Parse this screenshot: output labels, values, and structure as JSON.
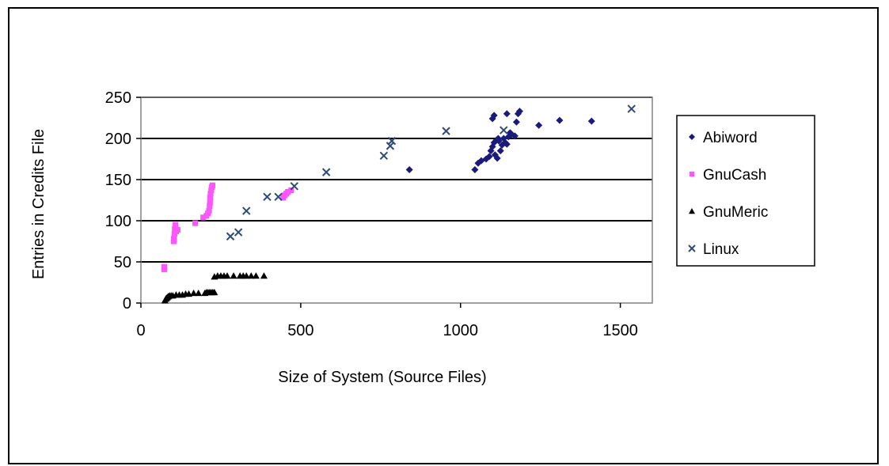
{
  "chart_data": {
    "type": "scatter",
    "xlabel": "Size of System (Source Files)",
    "ylabel": "Entries in Credits File",
    "xlim": [
      0,
      1600
    ],
    "ylim": [
      0,
      250
    ],
    "x_ticks": [
      0,
      500,
      1000,
      1500
    ],
    "y_ticks": [
      0,
      50,
      100,
      150,
      200,
      250
    ],
    "grid": "horizontal",
    "legend_position": "right",
    "colors": {
      "plot_background": "#ffffff",
      "gridline": "#000000"
    },
    "series": [
      {
        "name": "Abiword",
        "marker": "diamond",
        "color": "#1a1a7a",
        "points": [
          [
            840,
            162
          ],
          [
            1045,
            162
          ],
          [
            1055,
            170
          ],
          [
            1065,
            173
          ],
          [
            1080,
            175
          ],
          [
            1090,
            178
          ],
          [
            1095,
            185
          ],
          [
            1100,
            190
          ],
          [
            1105,
            195
          ],
          [
            1108,
            180
          ],
          [
            1112,
            198
          ],
          [
            1115,
            176
          ],
          [
            1118,
            200
          ],
          [
            1120,
            197
          ],
          [
            1125,
            185
          ],
          [
            1130,
            192
          ],
          [
            1135,
            200
          ],
          [
            1140,
            195
          ],
          [
            1145,
            193
          ],
          [
            1150,
            202
          ],
          [
            1155,
            207
          ],
          [
            1160,
            205
          ],
          [
            1170,
            203
          ],
          [
            1175,
            220
          ],
          [
            1100,
            224
          ],
          [
            1105,
            228
          ],
          [
            1145,
            230
          ],
          [
            1180,
            230
          ],
          [
            1185,
            233
          ],
          [
            1245,
            216
          ],
          [
            1310,
            222
          ],
          [
            1410,
            221
          ]
        ]
      },
      {
        "name": "GnuCash",
        "marker": "square",
        "color": "#ff55ff",
        "points": [
          [
            73,
            41
          ],
          [
            73,
            44
          ],
          [
            103,
            75
          ],
          [
            103,
            78
          ],
          [
            105,
            84
          ],
          [
            106,
            90
          ],
          [
            108,
            95
          ],
          [
            110,
            87
          ],
          [
            115,
            89
          ],
          [
            170,
            97
          ],
          [
            195,
            104
          ],
          [
            205,
            106
          ],
          [
            210,
            109
          ],
          [
            213,
            112
          ],
          [
            215,
            118
          ],
          [
            216,
            122
          ],
          [
            217,
            128
          ],
          [
            218,
            133
          ],
          [
            220,
            137
          ],
          [
            222,
            141
          ],
          [
            224,
            143
          ],
          [
            445,
            128
          ],
          [
            450,
            131
          ],
          [
            455,
            133
          ],
          [
            460,
            135
          ],
          [
            470,
            137
          ]
        ]
      },
      {
        "name": "GnuMeric",
        "marker": "triangle",
        "color": "#000000",
        "points": [
          [
            75,
            3
          ],
          [
            78,
            5
          ],
          [
            80,
            6
          ],
          [
            83,
            7
          ],
          [
            86,
            8
          ],
          [
            90,
            9
          ],
          [
            95,
            9
          ],
          [
            100,
            9
          ],
          [
            110,
            10
          ],
          [
            120,
            10
          ],
          [
            130,
            10
          ],
          [
            140,
            11
          ],
          [
            150,
            11
          ],
          [
            165,
            12
          ],
          [
            180,
            12
          ],
          [
            200,
            12
          ],
          [
            205,
            13
          ],
          [
            210,
            13
          ],
          [
            215,
            13
          ],
          [
            220,
            13
          ],
          [
            225,
            13
          ],
          [
            230,
            13
          ],
          [
            230,
            32
          ],
          [
            240,
            33
          ],
          [
            250,
            33
          ],
          [
            260,
            33
          ],
          [
            270,
            33
          ],
          [
            290,
            33
          ],
          [
            310,
            33
          ],
          [
            320,
            33
          ],
          [
            330,
            33
          ],
          [
            345,
            33
          ],
          [
            360,
            33
          ],
          [
            385,
            33
          ]
        ]
      },
      {
        "name": "Linux",
        "marker": "x",
        "color": "#2e4a78",
        "points": [
          [
            280,
            81
          ],
          [
            305,
            86
          ],
          [
            330,
            112
          ],
          [
            395,
            129
          ],
          [
            430,
            129
          ],
          [
            480,
            142
          ],
          [
            580,
            159
          ],
          [
            760,
            179
          ],
          [
            780,
            191
          ],
          [
            785,
            197
          ],
          [
            955,
            209
          ],
          [
            1135,
            210
          ],
          [
            1535,
            236
          ]
        ]
      }
    ]
  }
}
